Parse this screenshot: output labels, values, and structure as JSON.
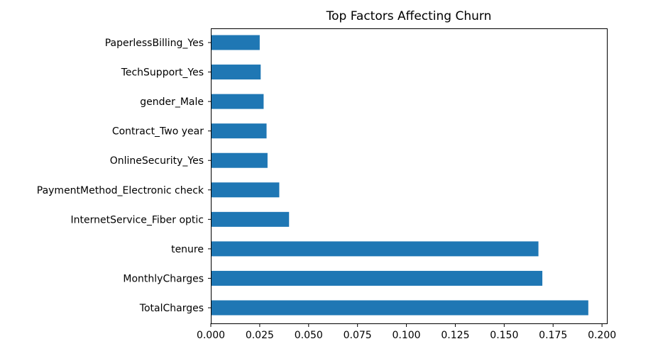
{
  "chart_data": {
    "type": "bar",
    "orientation": "horizontal",
    "title": "Top Factors Affecting Churn",
    "xlabel": "",
    "ylabel": "",
    "categories": [
      "PaperlessBilling_Yes",
      "TechSupport_Yes",
      "gender_Male",
      "Contract_Two year",
      "OnlineSecurity_Yes",
      "PaymentMethod_Electronic check",
      "InternetService_Fiber optic",
      "tenure",
      "MonthlyCharges",
      "TotalCharges"
    ],
    "values": [
      0.025,
      0.0255,
      0.027,
      0.0285,
      0.029,
      0.035,
      0.04,
      0.1675,
      0.1695,
      0.193
    ],
    "xlim": [
      0.0,
      0.2025
    ],
    "xticks": [
      0.0,
      0.025,
      0.05,
      0.075,
      0.1,
      0.125,
      0.15,
      0.175,
      0.2
    ],
    "xtick_labels": [
      "0.000",
      "0.025",
      "0.050",
      "0.075",
      "0.100",
      "0.125",
      "0.150",
      "0.175",
      "0.200"
    ],
    "grid": false,
    "legend": "none",
    "bar_color": "#1f77b4"
  }
}
